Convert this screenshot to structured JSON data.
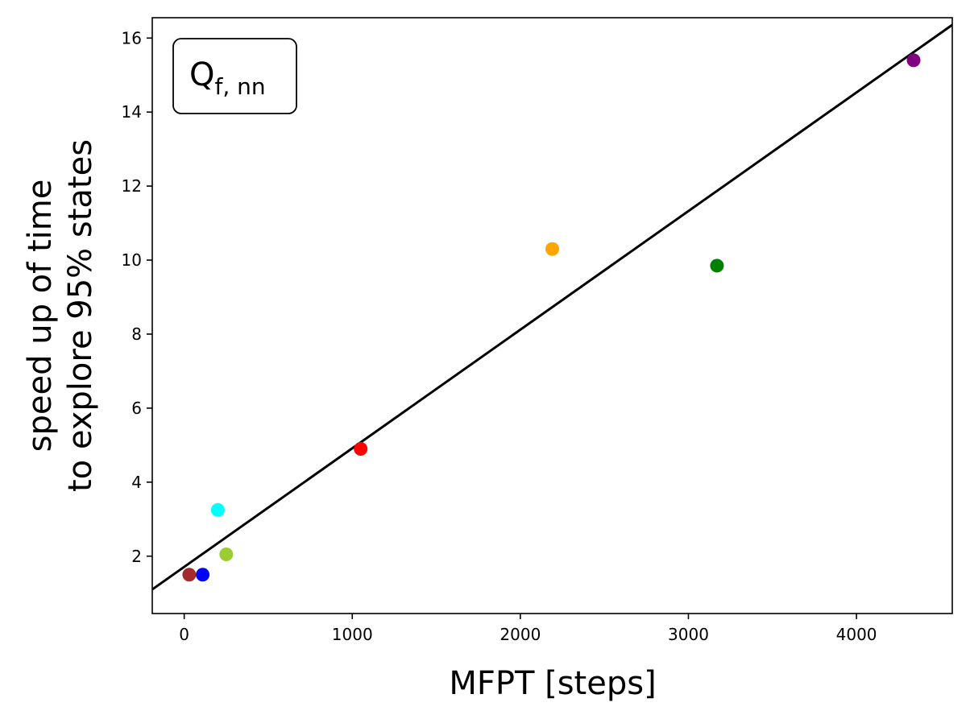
{
  "chart_data": {
    "type": "scatter",
    "title": "",
    "xlabel": "MFPT [steps]",
    "ylabel_lines": [
      "speed up of time",
      "to explore 95% states"
    ],
    "annotation": {
      "main": "Q",
      "sub": "f, nn"
    },
    "xlim": [
      -190,
      4570
    ],
    "ylim": [
      0.45,
      16.55
    ],
    "x_ticks": [
      0,
      1000,
      2000,
      3000,
      4000
    ],
    "y_ticks": [
      2,
      4,
      6,
      8,
      10,
      12,
      14,
      16
    ],
    "grid": false,
    "points": [
      {
        "x": 30,
        "y": 1.5,
        "color": "#a52a2a"
      },
      {
        "x": 110,
        "y": 1.5,
        "color": "#0000ff"
      },
      {
        "x": 200,
        "y": 3.25,
        "color": "#00ffff"
      },
      {
        "x": 250,
        "y": 2.05,
        "color": "#9acd32"
      },
      {
        "x": 1050,
        "y": 4.9,
        "color": "#ff0000"
      },
      {
        "x": 2190,
        "y": 10.3,
        "color": "#ffa500"
      },
      {
        "x": 3170,
        "y": 9.85,
        "color": "#008000"
      },
      {
        "x": 4340,
        "y": 15.4,
        "color": "#800080"
      }
    ],
    "fit_line": {
      "slope": 0.003205,
      "intercept": 1.71,
      "color": "#000000"
    }
  }
}
